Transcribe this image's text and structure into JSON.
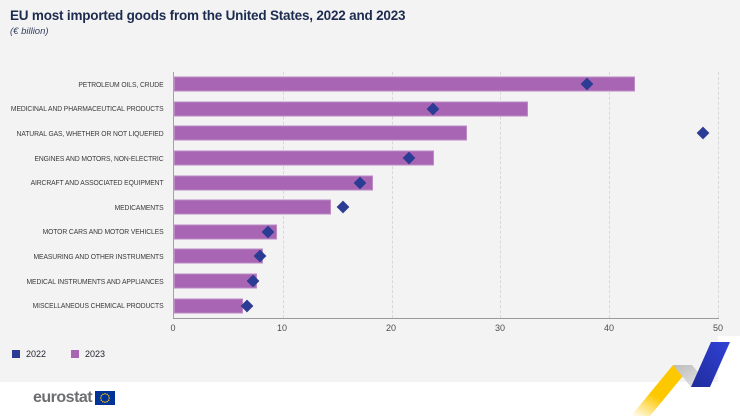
{
  "title": "EU most imported goods from the United States, 2022 and 2023",
  "subtitle": "(€ billion)",
  "legend": [
    {
      "label": "2022",
      "color": "#2c3b94"
    },
    {
      "label": "2023",
      "color": "#a765b3"
    }
  ],
  "footer": {
    "brand": "eurostat"
  },
  "colors": {
    "background": "#f3f3f4",
    "bar_2023": "#a765b3",
    "diamond_2022": "#2c3b94",
    "title_text": "#1d2b4f",
    "eu_flag_blue": "#003399",
    "eu_flag_stars": "#ffcc00",
    "deco_yellow": "#fdc800",
    "deco_blue": "#2d3bbf"
  },
  "chart_data": {
    "type": "bar",
    "orientation": "horizontal",
    "title": "EU most imported goods from the United States, 2022 and 2023",
    "subtitle": "(€ billion)",
    "unit": "EUR billion",
    "categories": [
      "Petroleum oils, crude",
      "Medicinal and pharmaceutical products",
      "Natural gas, whether or not liquefied",
      "Engines and motors, non-electric",
      "Aircraft and associated equipment",
      "Medicaments",
      "Motor cars and motor vehicles",
      "Measuring and other instruments",
      "Medical instruments and appliances",
      "Miscellaneous chemical products"
    ],
    "series": [
      {
        "name": "2022",
        "marker": "diamond",
        "values": [
          38.0,
          23.8,
          48.6,
          21.6,
          17.1,
          15.5,
          8.6,
          7.9,
          7.3,
          6.7
        ]
      },
      {
        "name": "2023",
        "marker": "bar",
        "values": [
          42.4,
          32.5,
          26.9,
          23.9,
          18.3,
          14.4,
          9.5,
          8.2,
          7.6,
          6.3
        ]
      }
    ],
    "xlim": [
      0,
      50
    ],
    "xticks": [
      0,
      10,
      20,
      30,
      40,
      50
    ],
    "grid": "vertical-dashed",
    "legend_position": "bottom-left"
  }
}
